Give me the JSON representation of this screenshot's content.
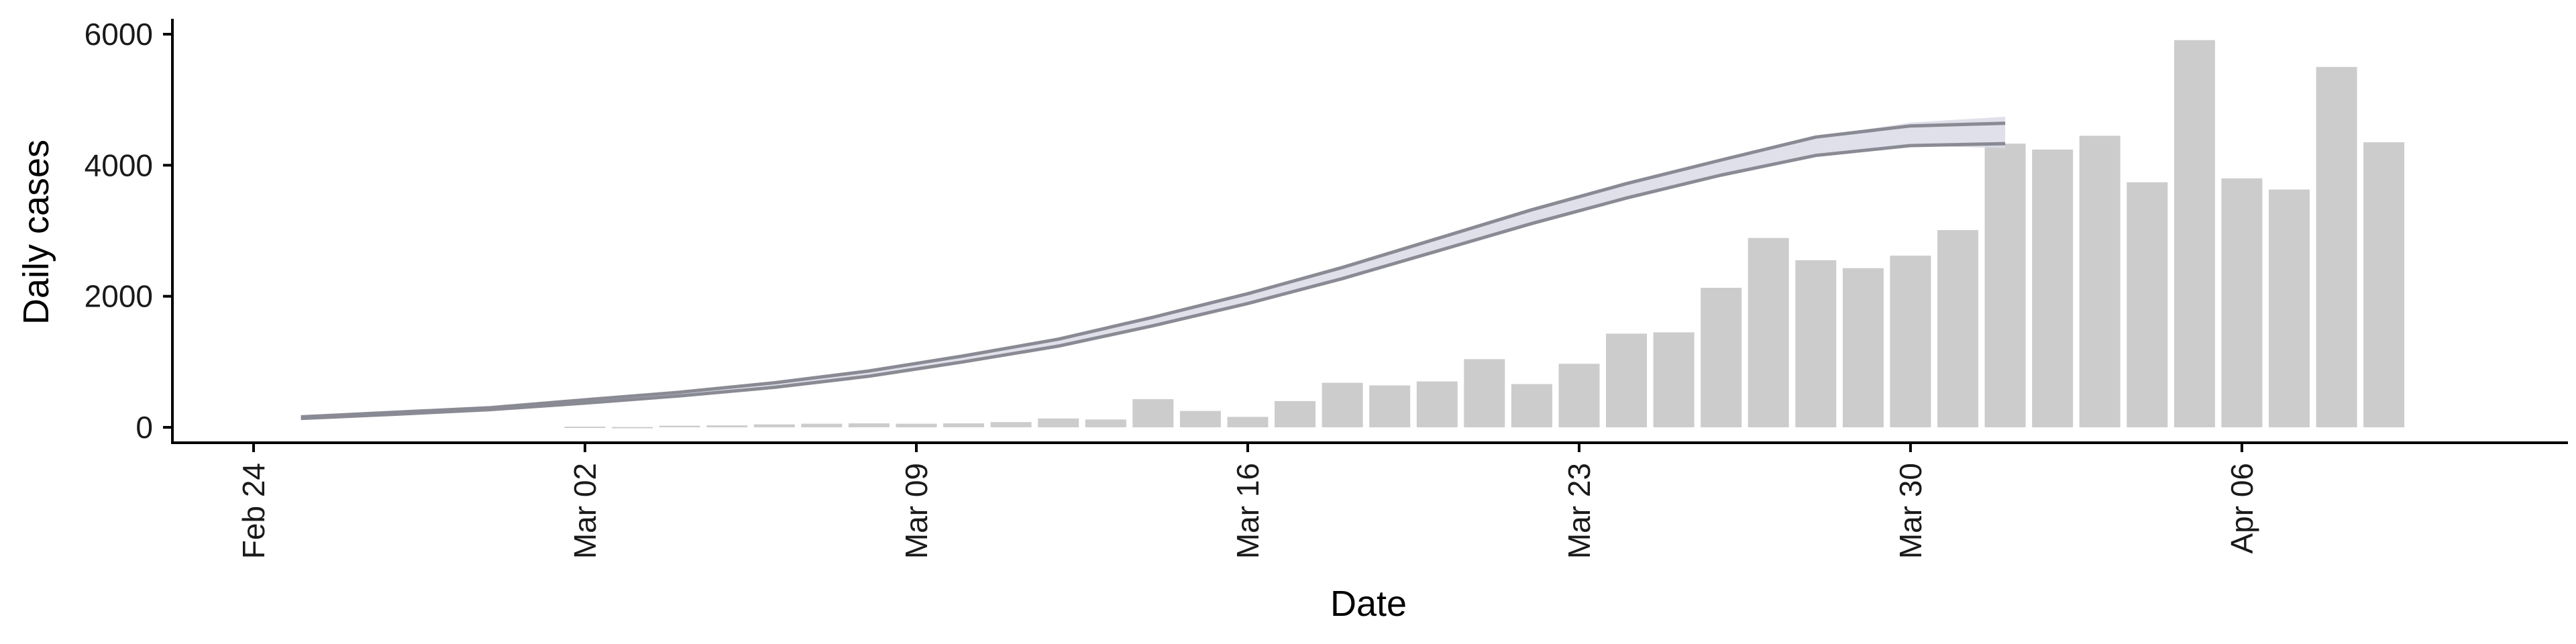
{
  "chart_data": {
    "type": "bar",
    "xlabel": "Date",
    "ylabel": "Daily cases",
    "ylim": [
      -250,
      6200
    ],
    "xlim": [
      "2020-02-24",
      "2020-04-11"
    ],
    "yticks": [
      0,
      2000,
      4000,
      6000
    ],
    "xticks": [
      {
        "date": "2020-02-24",
        "label": "Feb 24"
      },
      {
        "date": "2020-03-02",
        "label": "Mar 02"
      },
      {
        "date": "2020-03-09",
        "label": "Mar 09"
      },
      {
        "date": "2020-03-16",
        "label": "Mar 16"
      },
      {
        "date": "2020-03-23",
        "label": "Mar 23"
      },
      {
        "date": "2020-03-30",
        "label": "Mar 30"
      },
      {
        "date": "2020-04-06",
        "label": "Apr 06"
      }
    ],
    "grid": false,
    "series": [
      {
        "type": "bar",
        "color": "#cccccc",
        "x": [
          "2020-03-02",
          "2020-03-03",
          "2020-03-04",
          "2020-03-05",
          "2020-03-06",
          "2020-03-07",
          "2020-03-08",
          "2020-03-09",
          "2020-03-10",
          "2020-03-11",
          "2020-03-12",
          "2020-03-13",
          "2020-03-14",
          "2020-03-15",
          "2020-03-16",
          "2020-03-17",
          "2020-03-18",
          "2020-03-19",
          "2020-03-20",
          "2020-03-21",
          "2020-03-22",
          "2020-03-23",
          "2020-03-24",
          "2020-03-25",
          "2020-03-26",
          "2020-03-27",
          "2020-03-28",
          "2020-03-29",
          "2020-03-30",
          "2020-03-31",
          "2020-04-01",
          "2020-04-02",
          "2020-04-03",
          "2020-04-04",
          "2020-04-05",
          "2020-04-06",
          "2020-04-07",
          "2020-04-08",
          "2020-04-09",
          "2020-04-10"
        ],
        "values": [
          10,
          5,
          25,
          30,
          45,
          55,
          60,
          55,
          60,
          80,
          135,
          120,
          430,
          250,
          160,
          400,
          680,
          640,
          700,
          1040,
          660,
          970,
          1430,
          1450,
          2130,
          2890,
          2550,
          2430,
          2620,
          3010,
          4330,
          4240,
          4450,
          3740,
          5910,
          3800,
          3630,
          5500,
          4350,
          0
        ]
      },
      {
        "type": "band",
        "color": "#d9dbe6",
        "edge_color": "#8a8a94",
        "x": [
          "2020-02-25",
          "2020-02-27",
          "2020-02-29",
          "2020-03-02",
          "2020-03-04",
          "2020-03-06",
          "2020-03-08",
          "2020-03-10",
          "2020-03-12",
          "2020-03-14",
          "2020-03-16",
          "2020-03-18",
          "2020-03-20",
          "2020-03-22",
          "2020-03-24",
          "2020-03-26",
          "2020-03-28",
          "2020-03-30",
          "2020-04-01"
        ],
        "lower": [
          135,
          200,
          270,
          370,
          480,
          610,
          780,
          1000,
          1240,
          1550,
          1890,
          2270,
          2690,
          3110,
          3500,
          3850,
          4150,
          4300,
          4260
        ],
        "upper": [
          160,
          230,
          300,
          420,
          535,
          680,
          860,
          1090,
          1345,
          1680,
          2040,
          2440,
          2880,
          3320,
          3720,
          4080,
          4430,
          4650,
          4740
        ],
        "lower_edge": [
          135,
          200,
          270,
          370,
          480,
          610,
          780,
          1000,
          1240,
          1550,
          1890,
          2270,
          2690,
          3110,
          3500,
          3850,
          4150,
          4300,
          4330
        ],
        "upper_edge": [
          160,
          230,
          300,
          420,
          535,
          680,
          860,
          1090,
          1345,
          1680,
          2040,
          2440,
          2880,
          3320,
          3720,
          4080,
          4430,
          4600,
          4640
        ]
      }
    ]
  }
}
